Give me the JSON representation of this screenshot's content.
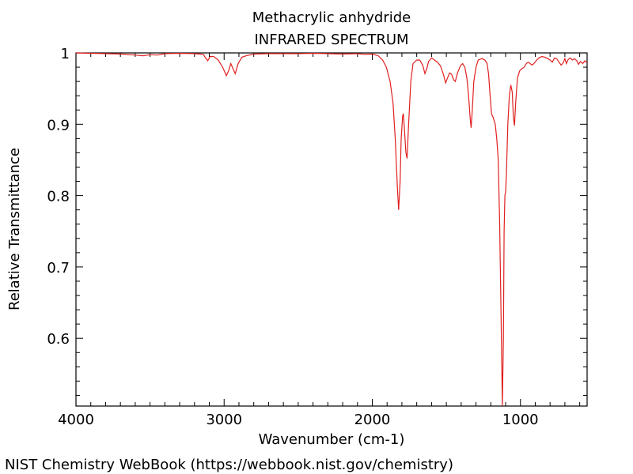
{
  "chart_data": {
    "type": "line",
    "title": "Methacrylic anhydride",
    "subtitle": "INFRARED SPECTRUM",
    "xlabel": "Wavenumber (cm-1)",
    "ylabel": "Relative Transmittance",
    "xlim": [
      4000,
      550
    ],
    "ylim": [
      0.505,
      1.0
    ],
    "x_reversed": true,
    "grid": false,
    "x_ticks": [
      4000,
      3000,
      2000,
      1000
    ],
    "x_tick_labels": [
      "4000",
      "3000",
      "2000",
      "1000"
    ],
    "y_ticks": [
      0.6,
      0.7,
      0.8,
      0.9,
      1.0
    ],
    "y_tick_labels": [
      "0.6",
      "0.7",
      "0.8",
      "0.9",
      "1"
    ],
    "series": [
      {
        "color": "#e02020",
        "points": [
          [
            4000,
            1.0
          ],
          [
            3800,
            0.999
          ],
          [
            3700,
            0.9985
          ],
          [
            3600,
            0.997
          ],
          [
            3550,
            0.996
          ],
          [
            3500,
            0.9975
          ],
          [
            3450,
            0.997
          ],
          [
            3400,
            0.999
          ],
          [
            3300,
            0.9995
          ],
          [
            3200,
            0.999
          ],
          [
            3140,
            0.998
          ],
          [
            3125,
            0.993
          ],
          [
            3110,
            0.989
          ],
          [
            3095,
            0.995
          ],
          [
            3070,
            0.995
          ],
          [
            3040,
            0.99
          ],
          [
            3010,
            0.98
          ],
          [
            2985,
            0.968
          ],
          [
            2970,
            0.975
          ],
          [
            2955,
            0.985
          ],
          [
            2940,
            0.978
          ],
          [
            2925,
            0.971
          ],
          [
            2905,
            0.985
          ],
          [
            2880,
            0.994
          ],
          [
            2850,
            0.996
          ],
          [
            2800,
            0.9985
          ],
          [
            2700,
            0.999
          ],
          [
            2600,
            0.999
          ],
          [
            2500,
            0.999
          ],
          [
            2400,
            0.9995
          ],
          [
            2300,
            0.999
          ],
          [
            2200,
            0.9985
          ],
          [
            2100,
            0.999
          ],
          [
            2050,
            0.998
          ],
          [
            2000,
            0.9985
          ],
          [
            1960,
            0.996
          ],
          [
            1930,
            0.99
          ],
          [
            1905,
            0.98
          ],
          [
            1880,
            0.96
          ],
          [
            1860,
            0.93
          ],
          [
            1845,
            0.88
          ],
          [
            1830,
            0.81
          ],
          [
            1822,
            0.78
          ],
          [
            1812,
            0.82
          ],
          [
            1805,
            0.88
          ],
          [
            1795,
            0.912
          ],
          [
            1790,
            0.915
          ],
          [
            1782,
            0.89
          ],
          [
            1773,
            0.86
          ],
          [
            1765,
            0.852
          ],
          [
            1755,
            0.9
          ],
          [
            1740,
            0.96
          ],
          [
            1725,
            0.985
          ],
          [
            1700,
            0.99
          ],
          [
            1680,
            0.99
          ],
          [
            1660,
            0.983
          ],
          [
            1645,
            0.971
          ],
          [
            1632,
            0.978
          ],
          [
            1620,
            0.988
          ],
          [
            1600,
            0.993
          ],
          [
            1580,
            0.99
          ],
          [
            1560,
            0.987
          ],
          [
            1540,
            0.982
          ],
          [
            1520,
            0.97
          ],
          [
            1505,
            0.958
          ],
          [
            1492,
            0.965
          ],
          [
            1478,
            0.972
          ],
          [
            1465,
            0.97
          ],
          [
            1450,
            0.962
          ],
          [
            1440,
            0.96
          ],
          [
            1425,
            0.972
          ],
          [
            1405,
            0.982
          ],
          [
            1390,
            0.985
          ],
          [
            1375,
            0.98
          ],
          [
            1362,
            0.965
          ],
          [
            1350,
            0.94
          ],
          [
            1340,
            0.91
          ],
          [
            1333,
            0.895
          ],
          [
            1325,
            0.92
          ],
          [
            1315,
            0.96
          ],
          [
            1300,
            0.98
          ],
          [
            1285,
            0.99
          ],
          [
            1260,
            0.992
          ],
          [
            1240,
            0.99
          ],
          [
            1225,
            0.985
          ],
          [
            1215,
            0.97
          ],
          [
            1205,
            0.94
          ],
          [
            1195,
            0.915
          ],
          [
            1185,
            0.91
          ],
          [
            1170,
            0.9
          ],
          [
            1160,
            0.88
          ],
          [
            1150,
            0.85
          ],
          [
            1140,
            0.76
          ],
          [
            1130,
            0.62
          ],
          [
            1122,
            0.505
          ],
          [
            1115,
            0.6
          ],
          [
            1110,
            0.75
          ],
          [
            1105,
            0.8
          ],
          [
            1100,
            0.805
          ],
          [
            1095,
            0.83
          ],
          [
            1085,
            0.9
          ],
          [
            1075,
            0.94
          ],
          [
            1065,
            0.955
          ],
          [
            1055,
            0.945
          ],
          [
            1048,
            0.91
          ],
          [
            1040,
            0.898
          ],
          [
            1032,
            0.93
          ],
          [
            1020,
            0.965
          ],
          [
            1005,
            0.975
          ],
          [
            990,
            0.978
          ],
          [
            975,
            0.98
          ],
          [
            960,
            0.985
          ],
          [
            948,
            0.987
          ],
          [
            935,
            0.985
          ],
          [
            920,
            0.983
          ],
          [
            905,
            0.986
          ],
          [
            890,
            0.99
          ],
          [
            875,
            0.993
          ],
          [
            855,
            0.995
          ],
          [
            835,
            0.994
          ],
          [
            815,
            0.992
          ],
          [
            800,
            0.99
          ],
          [
            785,
            0.987
          ],
          [
            770,
            0.993
          ],
          [
            755,
            0.992
          ],
          [
            740,
            0.987
          ],
          [
            725,
            0.983
          ],
          [
            712,
            0.986
          ],
          [
            700,
            0.992
          ],
          [
            690,
            0.985
          ],
          [
            680,
            0.99
          ],
          [
            665,
            0.993
          ],
          [
            650,
            0.99
          ],
          [
            635,
            0.992
          ],
          [
            620,
            0.989
          ],
          [
            608,
            0.984
          ],
          [
            595,
            0.988
          ],
          [
            580,
            0.985
          ],
          [
            565,
            0.989
          ],
          [
            550,
            0.986
          ]
        ]
      }
    ]
  },
  "footer": {
    "credit": "NIST Chemistry WebBook (https://webbook.nist.gov/chemistry)"
  }
}
